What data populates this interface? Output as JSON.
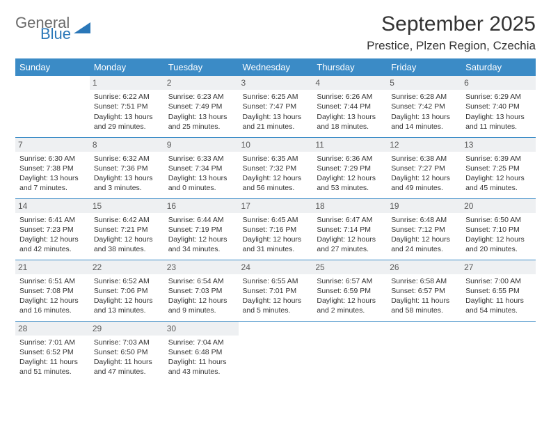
{
  "logo": {
    "text1": "General",
    "text2": "Blue"
  },
  "title": "September 2025",
  "subtitle": "Prestice, Plzen Region, Czechia",
  "colors": {
    "header_bg": "#3b8bc6",
    "header_text": "#ffffff",
    "daynum_bg": "#eef0f2",
    "daynum_text": "#5a5a5a",
    "border": "#3b8bc6",
    "body_text": "#333333",
    "logo_gray": "#6b6b6b",
    "logo_blue": "#2a77b8"
  },
  "weekdays": [
    "Sunday",
    "Monday",
    "Tuesday",
    "Wednesday",
    "Thursday",
    "Friday",
    "Saturday"
  ],
  "weeks": [
    [
      null,
      {
        "n": "1",
        "sr": "6:22 AM",
        "ss": "7:51 PM",
        "dl": "13 hours and 29 minutes."
      },
      {
        "n": "2",
        "sr": "6:23 AM",
        "ss": "7:49 PM",
        "dl": "13 hours and 25 minutes."
      },
      {
        "n": "3",
        "sr": "6:25 AM",
        "ss": "7:47 PM",
        "dl": "13 hours and 21 minutes."
      },
      {
        "n": "4",
        "sr": "6:26 AM",
        "ss": "7:44 PM",
        "dl": "13 hours and 18 minutes."
      },
      {
        "n": "5",
        "sr": "6:28 AM",
        "ss": "7:42 PM",
        "dl": "13 hours and 14 minutes."
      },
      {
        "n": "6",
        "sr": "6:29 AM",
        "ss": "7:40 PM",
        "dl": "13 hours and 11 minutes."
      }
    ],
    [
      {
        "n": "7",
        "sr": "6:30 AM",
        "ss": "7:38 PM",
        "dl": "13 hours and 7 minutes."
      },
      {
        "n": "8",
        "sr": "6:32 AM",
        "ss": "7:36 PM",
        "dl": "13 hours and 3 minutes."
      },
      {
        "n": "9",
        "sr": "6:33 AM",
        "ss": "7:34 PM",
        "dl": "13 hours and 0 minutes."
      },
      {
        "n": "10",
        "sr": "6:35 AM",
        "ss": "7:32 PM",
        "dl": "12 hours and 56 minutes."
      },
      {
        "n": "11",
        "sr": "6:36 AM",
        "ss": "7:29 PM",
        "dl": "12 hours and 53 minutes."
      },
      {
        "n": "12",
        "sr": "6:38 AM",
        "ss": "7:27 PM",
        "dl": "12 hours and 49 minutes."
      },
      {
        "n": "13",
        "sr": "6:39 AM",
        "ss": "7:25 PM",
        "dl": "12 hours and 45 minutes."
      }
    ],
    [
      {
        "n": "14",
        "sr": "6:41 AM",
        "ss": "7:23 PM",
        "dl": "12 hours and 42 minutes."
      },
      {
        "n": "15",
        "sr": "6:42 AM",
        "ss": "7:21 PM",
        "dl": "12 hours and 38 minutes."
      },
      {
        "n": "16",
        "sr": "6:44 AM",
        "ss": "7:19 PM",
        "dl": "12 hours and 34 minutes."
      },
      {
        "n": "17",
        "sr": "6:45 AM",
        "ss": "7:16 PM",
        "dl": "12 hours and 31 minutes."
      },
      {
        "n": "18",
        "sr": "6:47 AM",
        "ss": "7:14 PM",
        "dl": "12 hours and 27 minutes."
      },
      {
        "n": "19",
        "sr": "6:48 AM",
        "ss": "7:12 PM",
        "dl": "12 hours and 24 minutes."
      },
      {
        "n": "20",
        "sr": "6:50 AM",
        "ss": "7:10 PM",
        "dl": "12 hours and 20 minutes."
      }
    ],
    [
      {
        "n": "21",
        "sr": "6:51 AM",
        "ss": "7:08 PM",
        "dl": "12 hours and 16 minutes."
      },
      {
        "n": "22",
        "sr": "6:52 AM",
        "ss": "7:06 PM",
        "dl": "12 hours and 13 minutes."
      },
      {
        "n": "23",
        "sr": "6:54 AM",
        "ss": "7:03 PM",
        "dl": "12 hours and 9 minutes."
      },
      {
        "n": "24",
        "sr": "6:55 AM",
        "ss": "7:01 PM",
        "dl": "12 hours and 5 minutes."
      },
      {
        "n": "25",
        "sr": "6:57 AM",
        "ss": "6:59 PM",
        "dl": "12 hours and 2 minutes."
      },
      {
        "n": "26",
        "sr": "6:58 AM",
        "ss": "6:57 PM",
        "dl": "11 hours and 58 minutes."
      },
      {
        "n": "27",
        "sr": "7:00 AM",
        "ss": "6:55 PM",
        "dl": "11 hours and 54 minutes."
      }
    ],
    [
      {
        "n": "28",
        "sr": "7:01 AM",
        "ss": "6:52 PM",
        "dl": "11 hours and 51 minutes."
      },
      {
        "n": "29",
        "sr": "7:03 AM",
        "ss": "6:50 PM",
        "dl": "11 hours and 47 minutes."
      },
      {
        "n": "30",
        "sr": "7:04 AM",
        "ss": "6:48 PM",
        "dl": "11 hours and 43 minutes."
      },
      null,
      null,
      null,
      null
    ]
  ],
  "labels": {
    "sunrise": "Sunrise:",
    "sunset": "Sunset:",
    "daylight": "Daylight:"
  }
}
